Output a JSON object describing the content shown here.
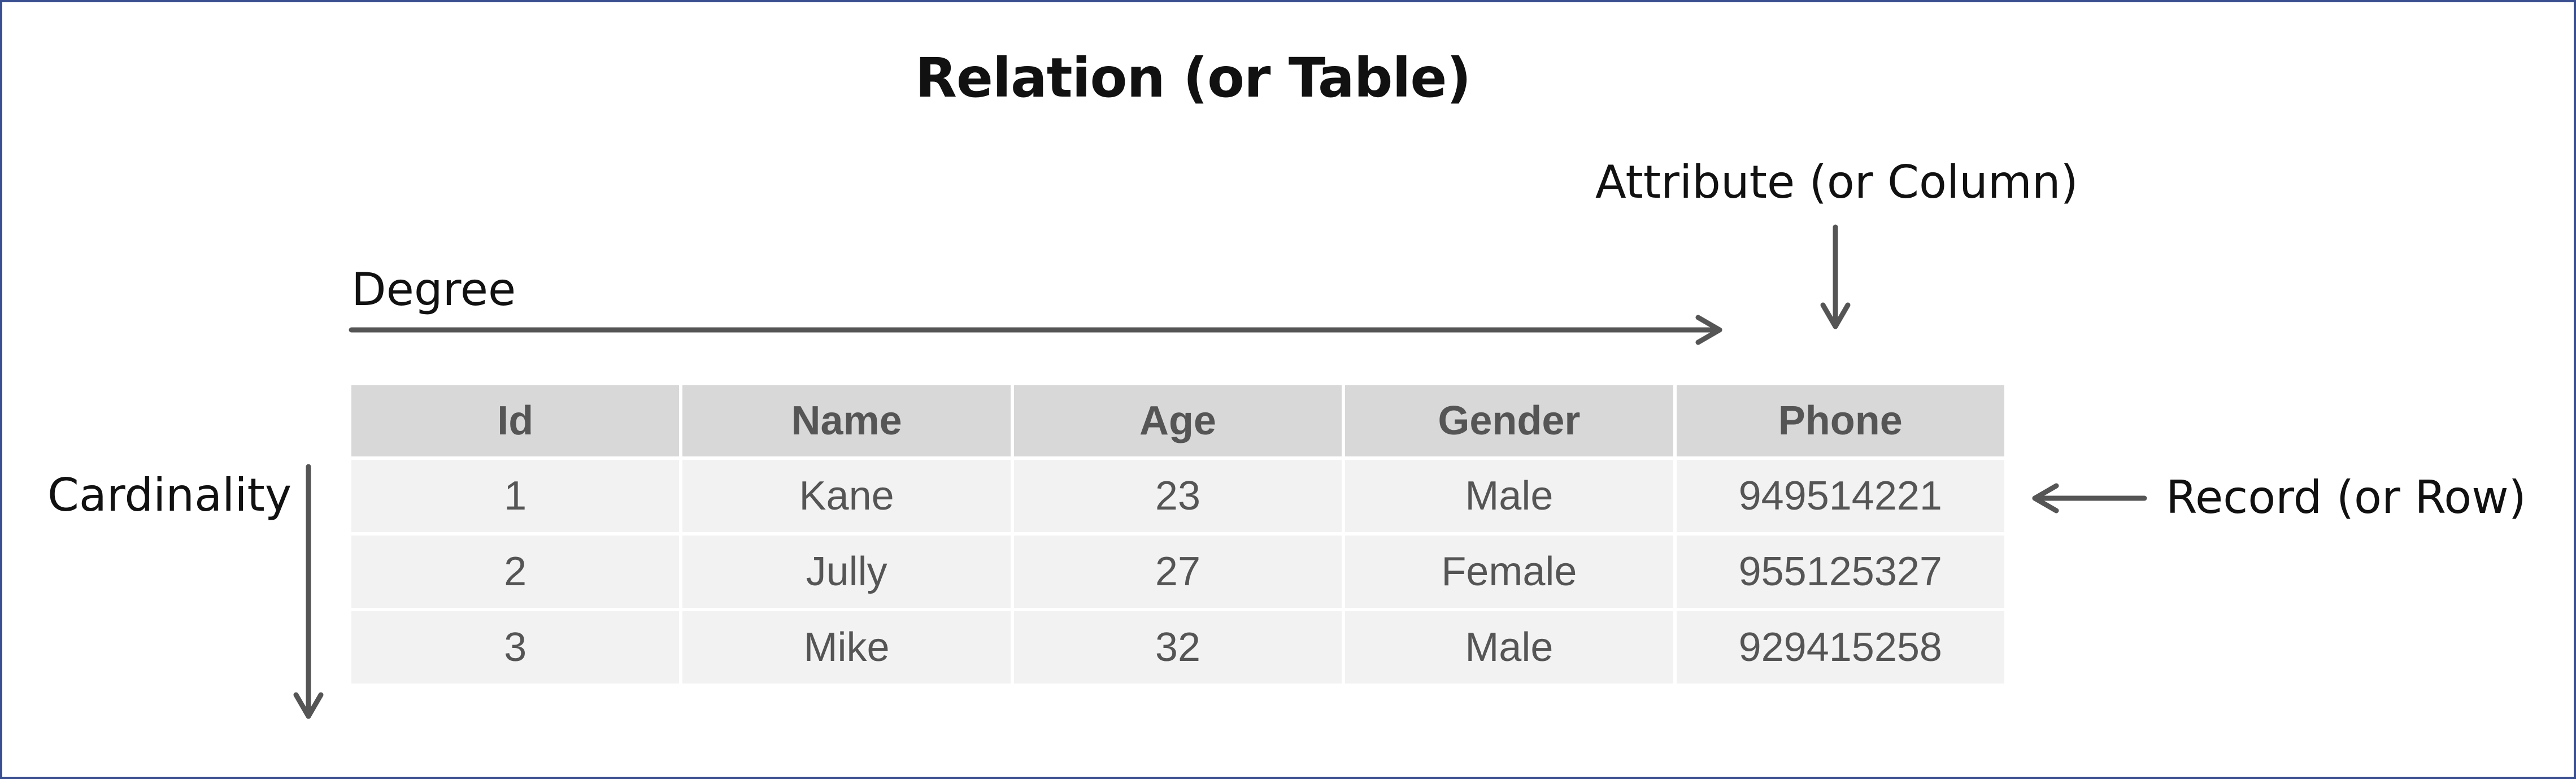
{
  "title": "Relation (or Table)",
  "labels": {
    "attribute": "Attribute (or Column)",
    "degree": "Degree",
    "cardinality": "Cardinality",
    "record": "Record (or Row)"
  },
  "table": {
    "headers": [
      "Id",
      "Name",
      "Age",
      "Gender",
      "Phone"
    ],
    "rows": [
      [
        "1",
        "Kane",
        "23",
        "Male",
        "949514221"
      ],
      [
        "2",
        "Jully",
        "27",
        "Female",
        "955125327"
      ],
      [
        "3",
        "Mike",
        "32",
        "Male",
        "929415258"
      ]
    ]
  },
  "colors": {
    "border": "#3a4f8f",
    "arrow": "#555555",
    "header_bg": "#d8d8d8",
    "cell_bg": "#f2f2f2",
    "cell_text": "#555555"
  }
}
